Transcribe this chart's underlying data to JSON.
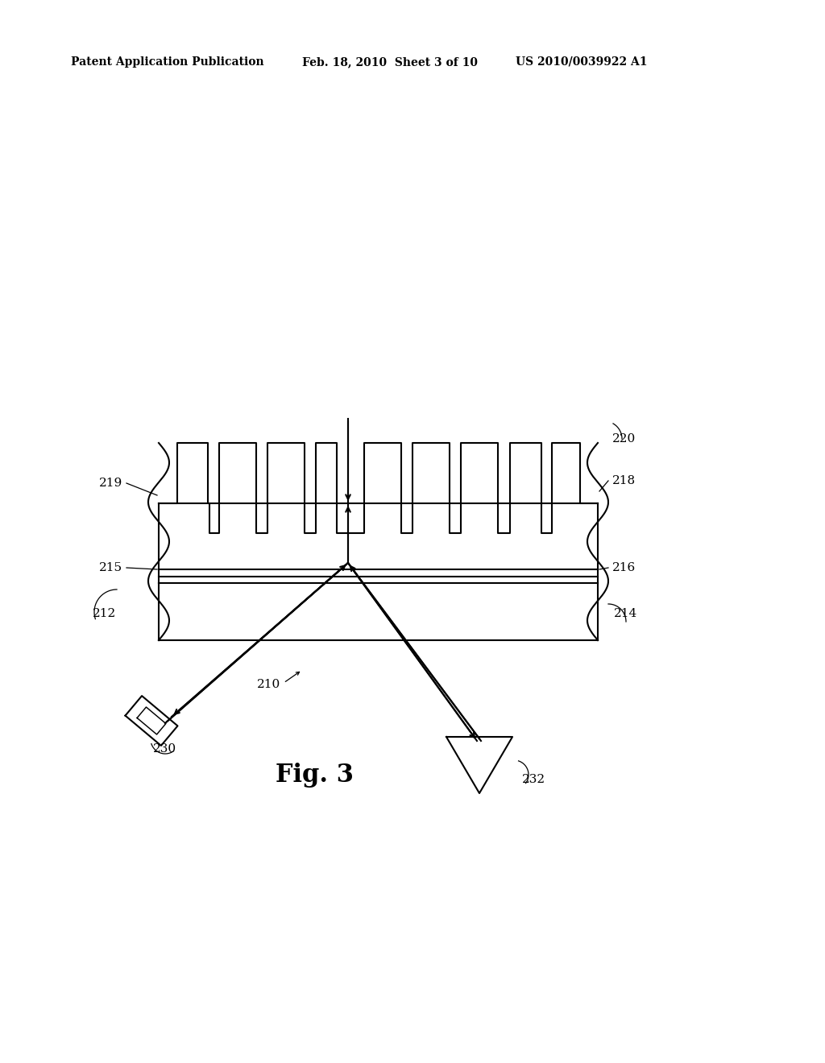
{
  "bg_color": "#ffffff",
  "line_color": "#000000",
  "header_text_left": "Patent Application Publication",
  "header_text_mid": "Feb. 18, 2010  Sheet 3 of 10",
  "header_text_right": "US 2010/0039922 A1",
  "fig_label": "Fig. 3",
  "label_220": "220",
  "label_219": "219",
  "label_218": "218",
  "label_216": "216",
  "label_215": "215",
  "label_212": "212",
  "label_214": "214",
  "label_210": "210",
  "label_230": "230",
  "label_232": "232"
}
